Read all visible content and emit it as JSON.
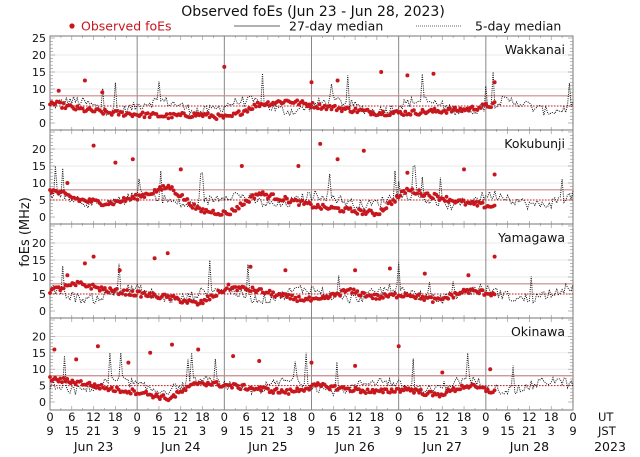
{
  "chart_data": {
    "type": "scatter",
    "title": "Observed foEs (Jun 23 - Jun 28, 2023)",
    "ylabel": "foEs (MHz)",
    "legend": {
      "placement": "top",
      "entries": [
        {
          "label": "Observed foEs",
          "style": "red-dots"
        },
        {
          "label": "27-day median",
          "style": "solid-line"
        },
        {
          "label": "5-day median",
          "style": "dotted-line"
        }
      ]
    },
    "colors": {
      "observed": "#c8161d",
      "median": "#111111",
      "ref_line": "#c98a8a",
      "grid": "#e0e0e0",
      "day_line": "#888888"
    },
    "ylim": [
      0,
      25
    ],
    "yticks_top": [
      0,
      5,
      10,
      15,
      20,
      25
    ],
    "yticks": [
      0,
      5,
      10,
      15,
      20
    ],
    "reference_lines": {
      "solid": 8,
      "dotted": 5
    },
    "x_ut_ticks": [
      "0",
      "6",
      "12",
      "18"
    ],
    "x_jst_ticks": [
      "9",
      "15",
      "21",
      "3"
    ],
    "x_end_ut": "0",
    "x_end_jst": "9",
    "x_unit_labels": {
      "ut": "UT",
      "jst": "JST"
    },
    "days": [
      "Jun 23",
      "Jun 24",
      "Jun 25",
      "Jun 26",
      "Jun 27",
      "Jun 28"
    ],
    "year": "2023",
    "observed_through_day_fraction": 5.12,
    "panels": [
      {
        "station": "Wakkanai",
        "observed_peaks": [
          [
            0.1,
            9.5
          ],
          [
            0.4,
            12.5
          ],
          [
            0.6,
            9
          ],
          [
            2.0,
            16.5
          ],
          [
            3.0,
            12
          ],
          [
            3.3,
            12.5
          ],
          [
            3.8,
            15
          ],
          [
            4.1,
            14
          ],
          [
            4.4,
            14.5
          ],
          [
            5.1,
            12
          ]
        ],
        "observed_base": [
          6,
          4,
          3,
          2.5,
          2,
          2.5,
          1.5,
          5.5,
          6.5,
          5,
          4,
          3,
          3,
          3.5,
          4,
          5.5
        ]
      },
      {
        "station": "Kokubunji",
        "observed_peaks": [
          [
            0.2,
            10
          ],
          [
            0.5,
            21
          ],
          [
            0.75,
            16
          ],
          [
            0.95,
            17
          ],
          [
            1.5,
            14
          ],
          [
            2.2,
            15
          ],
          [
            2.85,
            15
          ],
          [
            3.1,
            21.5
          ],
          [
            3.3,
            17
          ],
          [
            3.6,
            19.5
          ],
          [
            4.1,
            13
          ],
          [
            4.75,
            14
          ],
          [
            5.1,
            12.5
          ]
        ],
        "observed_base": [
          8,
          5,
          4,
          6,
          9,
          2,
          1,
          7,
          5,
          3,
          2,
          1,
          8,
          6,
          4,
          3
        ]
      },
      {
        "station": "Yamagawa",
        "observed_peaks": [
          [
            0.2,
            10.5
          ],
          [
            0.4,
            14
          ],
          [
            0.5,
            16
          ],
          [
            0.8,
            12
          ],
          [
            1.2,
            15.5
          ],
          [
            1.35,
            17
          ],
          [
            2.3,
            13
          ],
          [
            2.7,
            12
          ],
          [
            3.5,
            12
          ],
          [
            3.9,
            12.5
          ],
          [
            4.3,
            11
          ],
          [
            4.8,
            10.5
          ],
          [
            5.1,
            16
          ]
        ],
        "observed_base": [
          6,
          8,
          6,
          5,
          4,
          2,
          7,
          6,
          4,
          3,
          6,
          4,
          5,
          3,
          6,
          5
        ]
      },
      {
        "station": "Okinawa",
        "observed_peaks": [
          [
            0.05,
            16
          ],
          [
            0.3,
            13
          ],
          [
            0.55,
            17
          ],
          [
            0.9,
            12
          ],
          [
            1.15,
            15
          ],
          [
            1.4,
            17.5
          ],
          [
            1.7,
            16
          ],
          [
            2.1,
            14
          ],
          [
            2.4,
            12.5
          ],
          [
            3.0,
            12
          ],
          [
            3.5,
            11
          ],
          [
            4.0,
            17
          ],
          [
            4.5,
            9
          ],
          [
            5.05,
            10
          ]
        ],
        "observed_base": [
          7,
          6,
          4,
          3,
          1,
          6,
          5,
          4,
          3,
          5,
          4,
          3,
          4,
          2,
          5,
          3
        ]
      }
    ]
  }
}
